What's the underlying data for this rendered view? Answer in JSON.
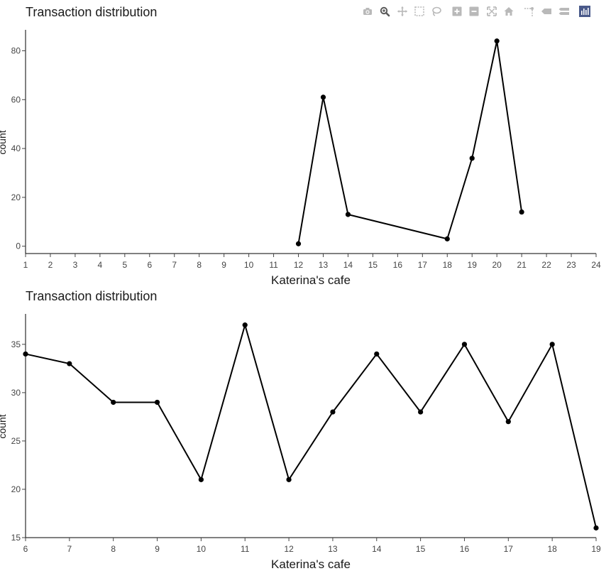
{
  "modebar": {
    "buttons": [
      {
        "icon": "camera-icon",
        "color": "#b9b9b9"
      },
      {
        "icon": "zoom-icon",
        "color": "#5a5a5a"
      },
      {
        "icon": "pan-icon",
        "color": "#b9b9b9"
      },
      {
        "icon": "box-select-icon",
        "color": "#b9b9b9"
      },
      {
        "icon": "lasso-select-icon",
        "color": "#b9b9b9"
      },
      {
        "icon": "zoom-in-icon",
        "color": "#b9b9b9"
      },
      {
        "icon": "zoom-out-icon",
        "color": "#b9b9b9"
      },
      {
        "icon": "autoscale-icon",
        "color": "#b9b9b9"
      },
      {
        "icon": "reset-axes-icon",
        "color": "#b9b9b9"
      },
      {
        "icon": "spike-lines-icon",
        "color": "#b9b9b9"
      },
      {
        "icon": "hover-closest-icon",
        "color": "#b9b9b9"
      },
      {
        "icon": "hover-compare-icon",
        "color": "#b9b9b9"
      },
      {
        "icon": "plotly-logo-icon",
        "color": "#4a5a8a"
      }
    ]
  },
  "chart_data": [
    {
      "type": "line",
      "title": "Transaction distribution",
      "xlabel": "Katerina's cafe",
      "ylabel": "count",
      "xlim": [
        1,
        24
      ],
      "ylim": [
        -3,
        88
      ],
      "xticks": [
        1,
        2,
        3,
        4,
        5,
        6,
        7,
        8,
        9,
        10,
        11,
        12,
        13,
        14,
        15,
        16,
        17,
        18,
        19,
        20,
        21,
        22,
        23,
        24
      ],
      "yticks": [
        0,
        20,
        40,
        60,
        80
      ],
      "grid": false,
      "line_color": "#000000",
      "x": [
        12,
        13,
        14,
        18,
        19,
        20,
        21
      ],
      "y": [
        1,
        61,
        13,
        3,
        36,
        84,
        14
      ]
    },
    {
      "type": "line",
      "title": "Transaction distribution",
      "xlabel": "Katerina's cafe",
      "ylabel": "count",
      "xlim": [
        6,
        19
      ],
      "ylim": [
        15,
        38
      ],
      "xticks": [
        6,
        7,
        8,
        9,
        10,
        11,
        12,
        13,
        14,
        15,
        16,
        17,
        18,
        19
      ],
      "yticks": [
        15,
        20,
        25,
        30,
        35
      ],
      "grid": false,
      "line_color": "#000000",
      "x": [
        6,
        7,
        8,
        9,
        10,
        11,
        12,
        13,
        14,
        15,
        16,
        17,
        18,
        19
      ],
      "y": [
        34,
        33,
        29,
        29,
        21,
        37,
        21,
        28,
        34,
        28,
        35,
        27,
        35,
        16
      ]
    }
  ]
}
